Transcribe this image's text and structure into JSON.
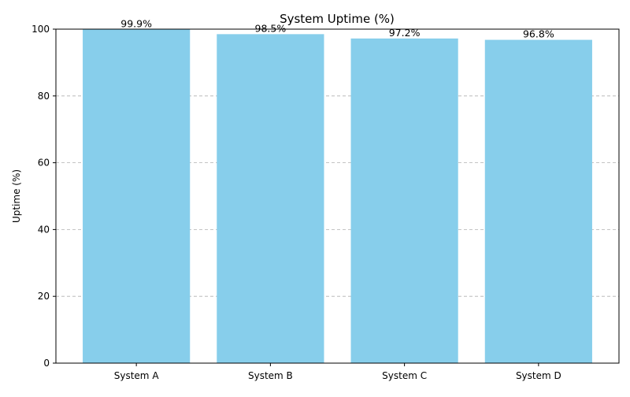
{
  "chart_data": {
    "type": "bar",
    "title": "System Uptime (%)",
    "xlabel": "",
    "ylabel": "Uptime (%)",
    "categories": [
      "System A",
      "System B",
      "System C",
      "System D"
    ],
    "values": [
      99.9,
      98.5,
      97.2,
      96.8
    ],
    "data_labels": [
      "99.9%",
      "98.5%",
      "97.2%",
      "96.8%"
    ],
    "ylim": [
      0,
      100
    ],
    "yticks": [
      0,
      20,
      40,
      60,
      80,
      100
    ],
    "grid": "y",
    "grid_style": "dashed",
    "legend": "none",
    "colors": {
      "bar": "#87CEEB",
      "grid": "#b0b0b0",
      "axis": "#000000",
      "text": "#000000"
    }
  }
}
